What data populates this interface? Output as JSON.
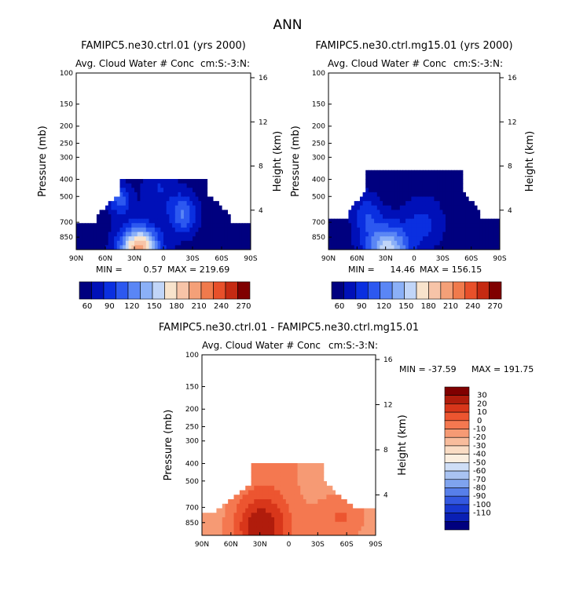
{
  "figure": {
    "title": "ANN",
    "colors": {
      "blue_dark": "#00007f",
      "red_dark": "#7f0000",
      "frame": "#000000"
    }
  },
  "chart_data": [
    {
      "type": "heatmap",
      "id": "p1",
      "title": "FAMIPC5.ne30.ctrl.01 (yrs 2000)",
      "subtitle": "Avg. Cloud Water # Conc",
      "units_label": "cm:S:-3:N:",
      "xlabel": "",
      "ylabel": "Pressure (mb)",
      "y2label": "Height (km)",
      "x_ticks": [
        "90N",
        "60N",
        "30N",
        "0",
        "30S",
        "60S",
        "90S"
      ],
      "y_ticks": [
        "100",
        "150",
        "200",
        "250",
        "300",
        "400",
        "500",
        "700",
        "850"
      ],
      "y_tick_values": [
        100,
        150,
        200,
        250,
        300,
        400,
        500,
        700,
        850
      ],
      "y2_ticks": [
        "16",
        "12",
        "8",
        "4"
      ],
      "y2_tick_values": [
        16,
        12,
        8,
        4
      ],
      "xlim": [
        90,
        -90
      ],
      "ylim": [
        1000,
        100
      ],
      "min_label": "MIN =",
      "min_value": "0.57",
      "max_label": "MAX = 219.69",
      "min": 0.57,
      "max": 219.69,
      "colorbar": {
        "orientation": "horizontal",
        "labels": [
          "60",
          "90",
          "120",
          "150",
          "180",
          "210",
          "240",
          "270"
        ],
        "colors": [
          "#00007f",
          "#0010b8",
          "#0a2fe0",
          "#2c58f0",
          "#5a86f5",
          "#8bb0f7",
          "#c1d5f8",
          "#f8e3cc",
          "#f7c4a8",
          "#f4a078",
          "#f07a4c",
          "#e8502a",
          "#c52a12",
          "#800000"
        ]
      }
    },
    {
      "type": "heatmap",
      "id": "p2",
      "title": "FAMIPC5.ne30.ctrl.mg15.01 (yrs 2000)",
      "subtitle": "Avg. Cloud Water # Conc",
      "units_label": "cm:S:-3:N:",
      "xlabel": "",
      "ylabel": "Pressure (mb)",
      "y2label": "Height (km)",
      "x_ticks": [
        "90N",
        "60N",
        "30N",
        "0",
        "30S",
        "60S",
        "90S"
      ],
      "y_ticks": [
        "100",
        "150",
        "200",
        "250",
        "300",
        "400",
        "500",
        "700",
        "850"
      ],
      "y_tick_values": [
        100,
        150,
        200,
        250,
        300,
        400,
        500,
        700,
        850
      ],
      "y2_ticks": [
        "16",
        "12",
        "8",
        "4"
      ],
      "y2_tick_values": [
        16,
        12,
        8,
        4
      ],
      "xlim": [
        90,
        -90
      ],
      "ylim": [
        1000,
        100
      ],
      "min_label": "MIN =",
      "min_value": "14.46",
      "max_label": "MAX = 156.15",
      "min": 14.46,
      "max": 156.15,
      "colorbar": {
        "orientation": "horizontal",
        "labels": [
          "60",
          "90",
          "120",
          "150",
          "180",
          "210",
          "240",
          "270"
        ],
        "colors": [
          "#00007f",
          "#0010b8",
          "#0a2fe0",
          "#2c58f0",
          "#5a86f5",
          "#8bb0f7",
          "#c1d5f8",
          "#f8e3cc",
          "#f7c4a8",
          "#f4a078",
          "#f07a4c",
          "#e8502a",
          "#c52a12",
          "#800000"
        ]
      }
    },
    {
      "type": "heatmap",
      "id": "p3",
      "title": "FAMIPC5.ne30.ctrl.01 - FAMIPC5.ne30.ctrl.mg15.01",
      "subtitle": "Avg. Cloud Water # Conc",
      "units_label": "cm:S:-3:N:",
      "xlabel": "",
      "ylabel": "Pressure (mb)",
      "y2label": "Height (km)",
      "x_ticks": [
        "90N",
        "60N",
        "30N",
        "0",
        "30S",
        "60S",
        "90S"
      ],
      "y_ticks": [
        "100",
        "150",
        "200",
        "250",
        "300",
        "400",
        "500",
        "700",
        "850"
      ],
      "y_tick_values": [
        100,
        150,
        200,
        250,
        300,
        400,
        500,
        700,
        850
      ],
      "y2_ticks": [
        "16",
        "12",
        "8",
        "4"
      ],
      "y2_tick_values": [
        16,
        12,
        8,
        4
      ],
      "xlim": [
        90,
        -90
      ],
      "ylim": [
        1000,
        100
      ],
      "min_label": "MIN = -37.59",
      "max_label": "MAX = 191.75",
      "min": -37.59,
      "max": 191.75,
      "colorbar": {
        "orientation": "vertical",
        "labels": [
          "30",
          "20",
          "10",
          "0",
          "-10",
          "-20",
          "-30",
          "-40",
          "-50",
          "-60",
          "-70",
          "-80",
          "-90",
          "-100",
          "-110"
        ],
        "colors": [
          "#800000",
          "#b01c0c",
          "#d8361a",
          "#ec5530",
          "#f47850",
          "#f69a74",
          "#f8bc9c",
          "#fadcc4",
          "#fbeedf",
          "#cfdef6",
          "#a9c3f2",
          "#7fa3ee",
          "#577fea",
          "#3358e0",
          "#1838d0",
          "#0a1fb4",
          "#00007f"
        ]
      }
    }
  ]
}
